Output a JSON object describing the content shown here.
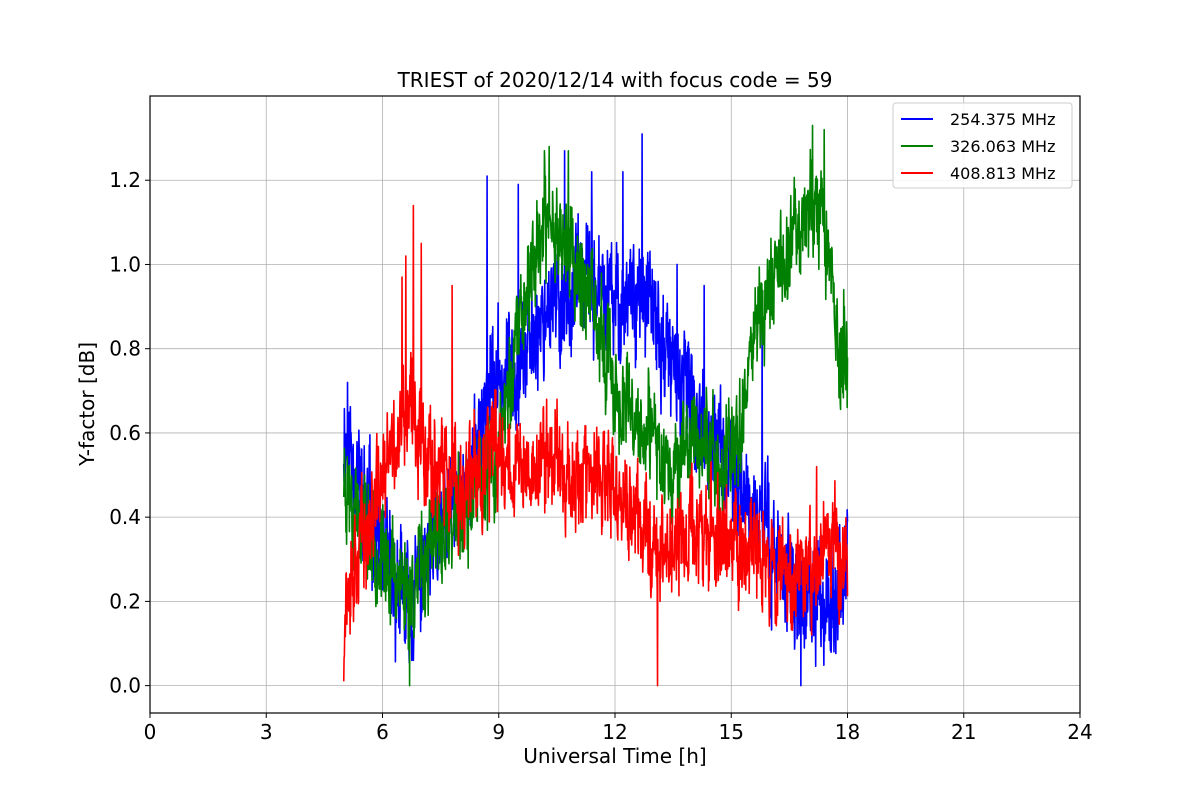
{
  "chart_data": {
    "type": "line",
    "title": "TRIEST of 2020/12/14 with focus code = 59",
    "xlabel": "Universal Time [h]",
    "ylabel": "Y-factor [dB]",
    "xlim": [
      0,
      24
    ],
    "ylim": [
      -0.065,
      1.4
    ],
    "xticks": [
      0,
      3,
      6,
      9,
      12,
      15,
      18,
      21,
      24
    ],
    "xtick_labels": [
      "0",
      "3",
      "6",
      "9",
      "12",
      "15",
      "18",
      "21",
      "24"
    ],
    "yticks": [
      0.0,
      0.2,
      0.4,
      0.6,
      0.8,
      1.0,
      1.2
    ],
    "ytick_labels": [
      "0.0",
      "0.2",
      "0.4",
      "0.6",
      "0.8",
      "1.0",
      "1.2"
    ],
    "grid": true,
    "legend_position": "top-right",
    "series": [
      {
        "name": "254.375 MHz",
        "color": "#0000ff",
        "x": [
          5.0,
          5.25,
          5.5,
          5.75,
          6.0,
          6.25,
          6.5,
          6.75,
          7.0,
          7.25,
          7.5,
          7.75,
          8.0,
          8.25,
          8.5,
          8.75,
          9.0,
          9.25,
          9.5,
          9.75,
          10.0,
          10.25,
          10.5,
          10.75,
          11.0,
          11.25,
          11.5,
          11.75,
          12.0,
          12.25,
          12.5,
          12.75,
          13.0,
          13.25,
          13.5,
          13.75,
          14.0,
          14.25,
          14.5,
          14.75,
          15.0,
          15.25,
          15.5,
          15.75,
          16.0,
          16.25,
          16.5,
          16.75,
          17.0,
          17.25,
          17.5,
          17.75,
          18.0
        ],
        "y": [
          0.6,
          0.55,
          0.45,
          0.4,
          0.3,
          0.25,
          0.2,
          0.18,
          0.25,
          0.3,
          0.35,
          0.4,
          0.45,
          0.5,
          0.6,
          0.7,
          0.72,
          0.75,
          0.78,
          0.8,
          0.85,
          0.9,
          0.9,
          0.92,
          0.95,
          0.95,
          0.95,
          0.92,
          0.9,
          0.92,
          0.95,
          0.9,
          0.88,
          0.8,
          0.75,
          0.72,
          0.65,
          0.62,
          0.58,
          0.55,
          0.5,
          0.45,
          0.42,
          0.4,
          0.35,
          0.3,
          0.25,
          0.2,
          0.18,
          0.2,
          0.22,
          0.25,
          0.28
        ],
        "noise": 0.09,
        "seed": 11,
        "spikes": [
          [
            5.1,
            0.72
          ],
          [
            8.7,
            1.21
          ],
          [
            9.5,
            1.19
          ],
          [
            10.7,
            1.27
          ],
          [
            11.4,
            1.22
          ],
          [
            12.2,
            1.22
          ],
          [
            12.7,
            1.31
          ],
          [
            13.6,
            1.0
          ],
          [
            14.3,
            0.95
          ],
          [
            15.8,
            0.88
          ],
          [
            16.8,
            0.0
          ]
        ]
      },
      {
        "name": "326.063 MHz",
        "color": "#008000",
        "x": [
          5.0,
          5.25,
          5.5,
          5.75,
          6.0,
          6.25,
          6.5,
          6.75,
          7.0,
          7.25,
          7.5,
          7.75,
          8.0,
          8.25,
          8.5,
          8.75,
          9.0,
          9.25,
          9.5,
          9.75,
          10.0,
          10.25,
          10.5,
          10.75,
          11.0,
          11.25,
          11.5,
          11.75,
          12.0,
          12.25,
          12.5,
          12.75,
          13.0,
          13.25,
          13.5,
          13.75,
          14.0,
          14.25,
          14.5,
          14.75,
          15.0,
          15.25,
          15.5,
          15.75,
          16.0,
          16.25,
          16.5,
          16.75,
          17.0,
          17.25,
          17.5,
          17.75,
          18.0
        ],
        "y": [
          0.5,
          0.45,
          0.4,
          0.35,
          0.3,
          0.28,
          0.25,
          0.22,
          0.28,
          0.32,
          0.35,
          0.38,
          0.4,
          0.42,
          0.45,
          0.5,
          0.55,
          0.7,
          0.85,
          0.95,
          1.05,
          1.1,
          1.1,
          1.05,
          1.0,
          0.95,
          0.85,
          0.8,
          0.7,
          0.65,
          0.62,
          0.6,
          0.58,
          0.55,
          0.52,
          0.55,
          0.58,
          0.6,
          0.55,
          0.5,
          0.55,
          0.65,
          0.8,
          0.9,
          0.95,
          1.0,
          1.05,
          1.1,
          1.15,
          1.15,
          1.05,
          0.8,
          0.75
        ],
        "noise": 0.08,
        "seed": 23,
        "spikes": [
          [
            6.7,
            0.0
          ],
          [
            10.3,
            1.28
          ],
          [
            10.8,
            1.27
          ],
          [
            17.1,
            1.33
          ],
          [
            17.4,
            1.32
          ],
          [
            17.9,
            0.94
          ]
        ]
      },
      {
        "name": "408.813 MHz",
        "color": "#ff0000",
        "x": [
          5.0,
          5.25,
          5.5,
          5.75,
          6.0,
          6.25,
          6.5,
          6.75,
          7.0,
          7.25,
          7.5,
          7.75,
          8.0,
          8.25,
          8.5,
          8.75,
          9.0,
          9.25,
          9.5,
          9.75,
          10.0,
          10.25,
          10.5,
          10.75,
          11.0,
          11.25,
          11.5,
          11.75,
          12.0,
          12.25,
          12.5,
          12.75,
          13.0,
          13.25,
          13.5,
          13.75,
          14.0,
          14.25,
          14.5,
          14.75,
          15.0,
          15.25,
          15.5,
          15.75,
          16.0,
          16.25,
          16.5,
          16.75,
          17.0,
          17.25,
          17.5,
          17.75,
          18.0
        ],
        "y": [
          0.2,
          0.3,
          0.35,
          0.4,
          0.5,
          0.55,
          0.6,
          0.65,
          0.6,
          0.55,
          0.5,
          0.48,
          0.45,
          0.48,
          0.5,
          0.55,
          0.55,
          0.55,
          0.52,
          0.5,
          0.52,
          0.55,
          0.55,
          0.52,
          0.5,
          0.5,
          0.48,
          0.48,
          0.45,
          0.42,
          0.4,
          0.38,
          0.35,
          0.33,
          0.32,
          0.35,
          0.38,
          0.38,
          0.35,
          0.35,
          0.35,
          0.33,
          0.32,
          0.3,
          0.3,
          0.28,
          0.28,
          0.28,
          0.3,
          0.3,
          0.32,
          0.32,
          0.33
        ],
        "noise": 0.085,
        "seed": 37,
        "spikes": [
          [
            5.0,
            0.01
          ],
          [
            6.5,
            0.97
          ],
          [
            6.6,
            1.02
          ],
          [
            6.8,
            1.14
          ],
          [
            7.0,
            1.05
          ],
          [
            7.8,
            0.95
          ],
          [
            13.1,
            0.0
          ],
          [
            17.2,
            0.52
          ]
        ]
      }
    ]
  }
}
